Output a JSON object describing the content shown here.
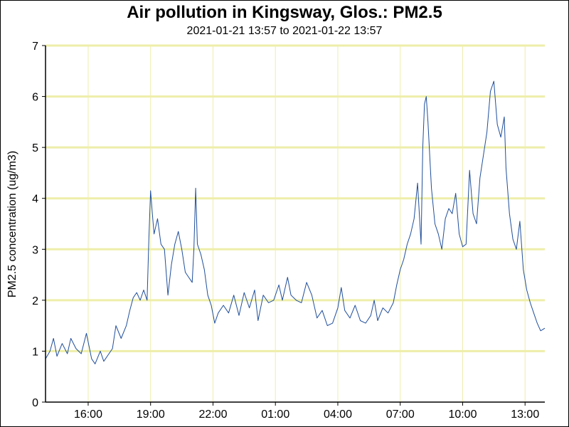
{
  "chart_data": {
    "type": "line",
    "title": "Air pollution in Kingsway, Glos.: PM2.5",
    "subtitle": "2021-01-21 13:57 to 2021-01-22 13:57",
    "xlabel": "",
    "ylabel": "PM2.5 concentration (ug/m3)",
    "ylim": [
      0,
      7
    ],
    "yticks": [
      0,
      1,
      2,
      3,
      4,
      5,
      6,
      7
    ],
    "xlim": [
      "2021-01-21 13:57",
      "2021-01-22 13:57"
    ],
    "xticks": [
      {
        "t": "2021-01-21 16:00",
        "label": "16:00"
      },
      {
        "t": "2021-01-21 19:00",
        "label": "19:00"
      },
      {
        "t": "2021-01-21 22:00",
        "label": "22:00"
      },
      {
        "t": "2021-01-22 01:00",
        "label": "01:00"
      },
      {
        "t": "2021-01-22 04:00",
        "label": "04:00"
      },
      {
        "t": "2021-01-22 07:00",
        "label": "07:00"
      },
      {
        "t": "2021-01-22 10:00",
        "label": "10:00"
      },
      {
        "t": "2021-01-22 13:00",
        "label": "13:00"
      }
    ],
    "grid": true,
    "colors": {
      "line": "#1f4e9a",
      "grid": "#eeeeaa"
    },
    "series": [
      {
        "points": [
          [
            "2021-01-21 13:57",
            0.85
          ],
          [
            "2021-01-21 14:10",
            1.0
          ],
          [
            "2021-01-21 14:20",
            1.25
          ],
          [
            "2021-01-21 14:30",
            0.9
          ],
          [
            "2021-01-21 14:45",
            1.15
          ],
          [
            "2021-01-21 15:00",
            0.95
          ],
          [
            "2021-01-21 15:10",
            1.25
          ],
          [
            "2021-01-21 15:25",
            1.05
          ],
          [
            "2021-01-21 15:40",
            0.95
          ],
          [
            "2021-01-21 15:55",
            1.35
          ],
          [
            "2021-01-21 16:10",
            0.85
          ],
          [
            "2021-01-21 16:20",
            0.75
          ],
          [
            "2021-01-21 16:35",
            1.0
          ],
          [
            "2021-01-21 16:45",
            0.8
          ],
          [
            "2021-01-21 17:00",
            0.95
          ],
          [
            "2021-01-21 17:10",
            1.05
          ],
          [
            "2021-01-21 17:20",
            1.5
          ],
          [
            "2021-01-21 17:35",
            1.25
          ],
          [
            "2021-01-21 17:50",
            1.5
          ],
          [
            "2021-01-21 18:00",
            1.8
          ],
          [
            "2021-01-21 18:10",
            2.05
          ],
          [
            "2021-01-21 18:20",
            2.15
          ],
          [
            "2021-01-21 18:30",
            2.0
          ],
          [
            "2021-01-21 18:40",
            2.2
          ],
          [
            "2021-01-21 18:50",
            2.0
          ],
          [
            "2021-01-21 18:55",
            3.2
          ],
          [
            "2021-01-21 19:00",
            4.15
          ],
          [
            "2021-01-21 19:05",
            3.7
          ],
          [
            "2021-01-21 19:10",
            3.3
          ],
          [
            "2021-01-21 19:20",
            3.6
          ],
          [
            "2021-01-21 19:30",
            3.1
          ],
          [
            "2021-01-21 19:40",
            3.0
          ],
          [
            "2021-01-21 19:50",
            2.1
          ],
          [
            "2021-01-21 20:00",
            2.7
          ],
          [
            "2021-01-21 20:10",
            3.1
          ],
          [
            "2021-01-21 20:20",
            3.35
          ],
          [
            "2021-01-21 20:30",
            3.0
          ],
          [
            "2021-01-21 20:40",
            2.55
          ],
          [
            "2021-01-21 20:50",
            2.45
          ],
          [
            "2021-01-21 21:00",
            2.35
          ],
          [
            "2021-01-21 21:05",
            3.0
          ],
          [
            "2021-01-21 21:10",
            4.2
          ],
          [
            "2021-01-21 21:15",
            3.1
          ],
          [
            "2021-01-21 21:25",
            2.9
          ],
          [
            "2021-01-21 21:35",
            2.6
          ],
          [
            "2021-01-21 21:45",
            2.1
          ],
          [
            "2021-01-21 21:55",
            1.9
          ],
          [
            "2021-01-21 22:05",
            1.55
          ],
          [
            "2021-01-21 22:15",
            1.75
          ],
          [
            "2021-01-21 22:30",
            1.9
          ],
          [
            "2021-01-21 22:45",
            1.75
          ],
          [
            "2021-01-21 23:00",
            2.1
          ],
          [
            "2021-01-21 23:15",
            1.7
          ],
          [
            "2021-01-21 23:30",
            2.15
          ],
          [
            "2021-01-21 23:45",
            1.85
          ],
          [
            "2021-01-22 00:00",
            2.2
          ],
          [
            "2021-01-22 00:10",
            1.6
          ],
          [
            "2021-01-22 00:25",
            2.1
          ],
          [
            "2021-01-22 00:40",
            1.95
          ],
          [
            "2021-01-22 00:55",
            2.0
          ],
          [
            "2021-01-22 01:10",
            2.3
          ],
          [
            "2021-01-22 01:20",
            2.0
          ],
          [
            "2021-01-22 01:35",
            2.45
          ],
          [
            "2021-01-22 01:45",
            2.1
          ],
          [
            "2021-01-22 02:00",
            2.0
          ],
          [
            "2021-01-22 02:15",
            1.95
          ],
          [
            "2021-01-22 02:30",
            2.35
          ],
          [
            "2021-01-22 02:45",
            2.1
          ],
          [
            "2021-01-22 03:00",
            1.65
          ],
          [
            "2021-01-22 03:15",
            1.8
          ],
          [
            "2021-01-22 03:30",
            1.5
          ],
          [
            "2021-01-22 03:45",
            1.55
          ],
          [
            "2021-01-22 04:00",
            1.85
          ],
          [
            "2021-01-22 04:10",
            2.25
          ],
          [
            "2021-01-22 04:20",
            1.8
          ],
          [
            "2021-01-22 04:35",
            1.65
          ],
          [
            "2021-01-22 04:50",
            1.9
          ],
          [
            "2021-01-22 05:05",
            1.6
          ],
          [
            "2021-01-22 05:20",
            1.55
          ],
          [
            "2021-01-22 05:35",
            1.7
          ],
          [
            "2021-01-22 05:45",
            2.0
          ],
          [
            "2021-01-22 05:55",
            1.6
          ],
          [
            "2021-01-22 06:10",
            1.85
          ],
          [
            "2021-01-22 06:25",
            1.75
          ],
          [
            "2021-01-22 06:40",
            1.95
          ],
          [
            "2021-01-22 06:50",
            2.3
          ],
          [
            "2021-01-22 07:00",
            2.6
          ],
          [
            "2021-01-22 07:10",
            2.8
          ],
          [
            "2021-01-22 07:20",
            3.1
          ],
          [
            "2021-01-22 07:30",
            3.3
          ],
          [
            "2021-01-22 07:40",
            3.6
          ],
          [
            "2021-01-22 07:50",
            4.3
          ],
          [
            "2021-01-22 08:00",
            3.1
          ],
          [
            "2021-01-22 08:05",
            5.0
          ],
          [
            "2021-01-22 08:10",
            5.85
          ],
          [
            "2021-01-22 08:15",
            6.0
          ],
          [
            "2021-01-22 08:20",
            5.5
          ],
          [
            "2021-01-22 08:30",
            4.2
          ],
          [
            "2021-01-22 08:40",
            3.5
          ],
          [
            "2021-01-22 08:50",
            3.3
          ],
          [
            "2021-01-22 09:00",
            3.0
          ],
          [
            "2021-01-22 09:10",
            3.6
          ],
          [
            "2021-01-22 09:20",
            3.8
          ],
          [
            "2021-01-22 09:30",
            3.7
          ],
          [
            "2021-01-22 09:40",
            4.1
          ],
          [
            "2021-01-22 09:50",
            3.3
          ],
          [
            "2021-01-22 10:00",
            3.05
          ],
          [
            "2021-01-22 10:10",
            3.1
          ],
          [
            "2021-01-22 10:20",
            4.55
          ],
          [
            "2021-01-22 10:30",
            3.7
          ],
          [
            "2021-01-22 10:40",
            3.5
          ],
          [
            "2021-01-22 10:50",
            4.4
          ],
          [
            "2021-01-22 11:00",
            4.85
          ],
          [
            "2021-01-22 11:10",
            5.3
          ],
          [
            "2021-01-22 11:20",
            6.1
          ],
          [
            "2021-01-22 11:30",
            6.3
          ],
          [
            "2021-01-22 11:40",
            5.45
          ],
          [
            "2021-01-22 11:50",
            5.2
          ],
          [
            "2021-01-22 12:00",
            5.6
          ],
          [
            "2021-01-22 12:05",
            4.6
          ],
          [
            "2021-01-22 12:15",
            3.7
          ],
          [
            "2021-01-22 12:25",
            3.2
          ],
          [
            "2021-01-22 12:35",
            3.0
          ],
          [
            "2021-01-22 12:45",
            3.55
          ],
          [
            "2021-01-22 12:55",
            2.6
          ],
          [
            "2021-01-22 13:05",
            2.2
          ],
          [
            "2021-01-22 13:15",
            1.95
          ],
          [
            "2021-01-22 13:25",
            1.75
          ],
          [
            "2021-01-22 13:35",
            1.55
          ],
          [
            "2021-01-22 13:45",
            1.4
          ],
          [
            "2021-01-22 13:57",
            1.45
          ]
        ]
      }
    ]
  }
}
